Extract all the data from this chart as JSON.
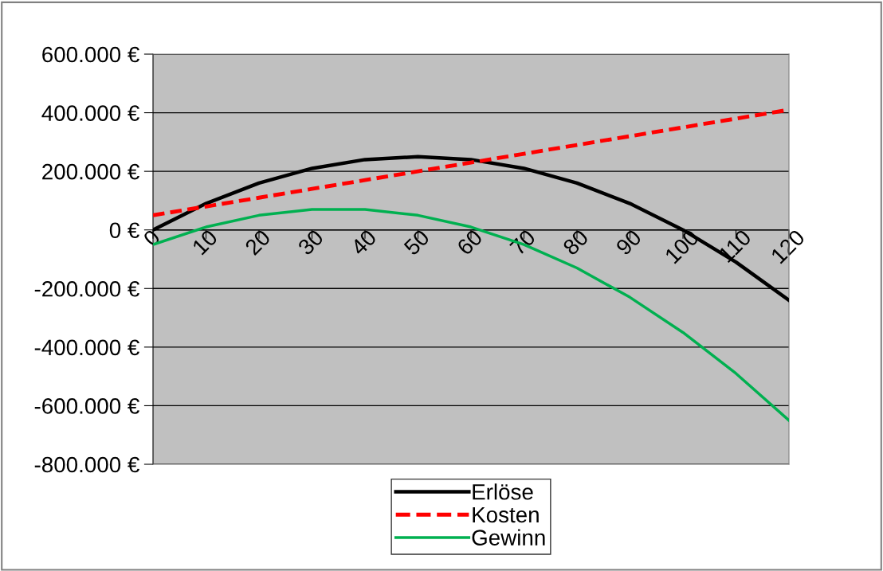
{
  "chart_data": {
    "type": "line",
    "categories": [
      "0",
      "10",
      "20",
      "30",
      "40",
      "50",
      "60",
      "70",
      "80",
      "90",
      "100",
      "110",
      "120"
    ],
    "series": [
      {
        "name": "Erlöse",
        "color": "#000000",
        "line_style": "solid",
        "values": [
          0,
          90000,
          160000,
          210000,
          240000,
          250000,
          240000,
          210000,
          160000,
          90000,
          0,
          -110000,
          -240000
        ]
      },
      {
        "name": "Kosten",
        "color": "#ff0000",
        "line_style": "dashed",
        "values": [
          50000,
          80000,
          110000,
          140000,
          170000,
          200000,
          230000,
          260000,
          290000,
          320000,
          350000,
          380000,
          410000
        ]
      },
      {
        "name": "Gewinn",
        "color": "#00b050",
        "line_style": "solid",
        "values": [
          -50000,
          10000,
          50000,
          70000,
          70000,
          50000,
          10000,
          -50000,
          -130000,
          -230000,
          -350000,
          -490000,
          -650000
        ]
      }
    ],
    "ylim": [
      -800000,
      600000
    ],
    "yticks": [
      {
        "value": -800000,
        "label": "-800.000 €"
      },
      {
        "value": -600000,
        "label": "-600.000 €"
      },
      {
        "value": -400000,
        "label": "-400.000 €"
      },
      {
        "value": -200000,
        "label": "-200.000 €"
      },
      {
        "value": 0,
        "label": "0 €"
      },
      {
        "value": 200000,
        "label": "200.000 €"
      },
      {
        "value": 400000,
        "label": "400.000 €"
      },
      {
        "value": 600000,
        "label": "600.000 €"
      }
    ],
    "grid": "y",
    "legend": "bottom",
    "marker": "none"
  }
}
